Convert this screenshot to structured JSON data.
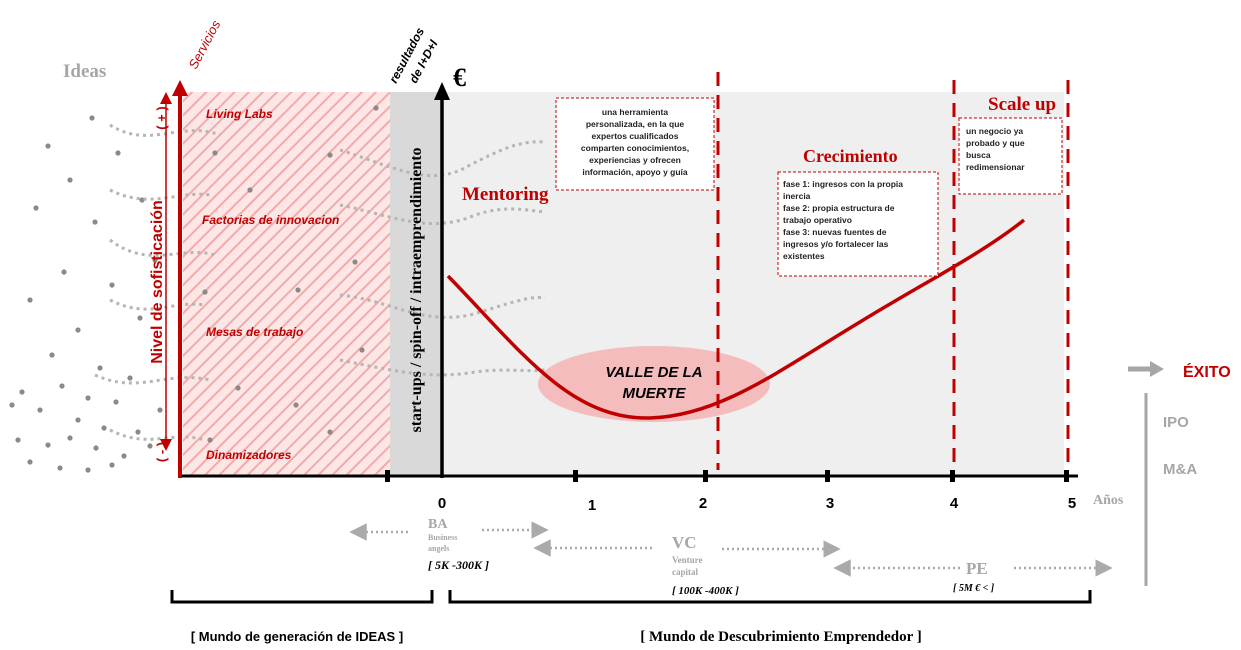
{
  "ideas_label": "Ideas",
  "servicios_label": "Servicios",
  "resultados_label": [
    "resultados",
    "de I+D+I"
  ],
  "euro_label": "€",
  "sofisticacion_label": "Nivel de sofisticación",
  "plus_label": "( + )",
  "minus_label": "( - )",
  "services": [
    "Living Labs",
    "Factorias de innovacion",
    "Mesas de trabajo",
    "Dinamizadores"
  ],
  "startups_label": "start-ups / spin-off / intraemprendimiento",
  "mentoring": {
    "title": "Mentoring",
    "box_lines": [
      "una herramienta",
      "personalizada, en la que",
      "expertos cualificados",
      "comparten conocimientos,",
      "experiencias y ofrecen",
      "información, apoyo y guía"
    ]
  },
  "crecimiento": {
    "title": "Crecimiento",
    "box_lines": [
      "fase 1: ingresos con la propia",
      "inercia",
      "fase 2: propia estructura de",
      "trabajo operativo",
      "fase 3: nuevas fuentes de",
      "ingresos y/o fortalecer las",
      "existentes"
    ]
  },
  "scaleup": {
    "title": "Scale up",
    "box_lines": [
      "un negocio ya",
      "probado y que",
      "busca",
      "redimensionar"
    ]
  },
  "valle_lines": [
    "VALLE DE LA",
    "MUERTE"
  ],
  "x_axis": {
    "ticks": [
      "0",
      "1",
      "2",
      "3",
      "4",
      "5"
    ],
    "label": "Años"
  },
  "exito_label": "ÉXITO",
  "exits": [
    "IPO",
    "M&A"
  ],
  "funding": {
    "ba": {
      "abbr": "BA",
      "sub": [
        "Business",
        "angels"
      ],
      "range": "[ 5K -300K ]"
    },
    "vc": {
      "abbr": "VC",
      "sub": [
        "Venture",
        "capital"
      ],
      "range": "[ 100K -400K ]"
    },
    "pe": {
      "abbr": "PE",
      "range": "[ 5M € < ]"
    }
  },
  "brackets": {
    "ideas": "[ Mundo de generación de IDEAS ]",
    "emprendedor": "[ Mundo de Descubrimiento Emprendedor ]"
  },
  "colors": {
    "red": "#c00000",
    "gray": "#999999",
    "light_red": "#f4b6b6",
    "panel": "#eeeeee"
  }
}
